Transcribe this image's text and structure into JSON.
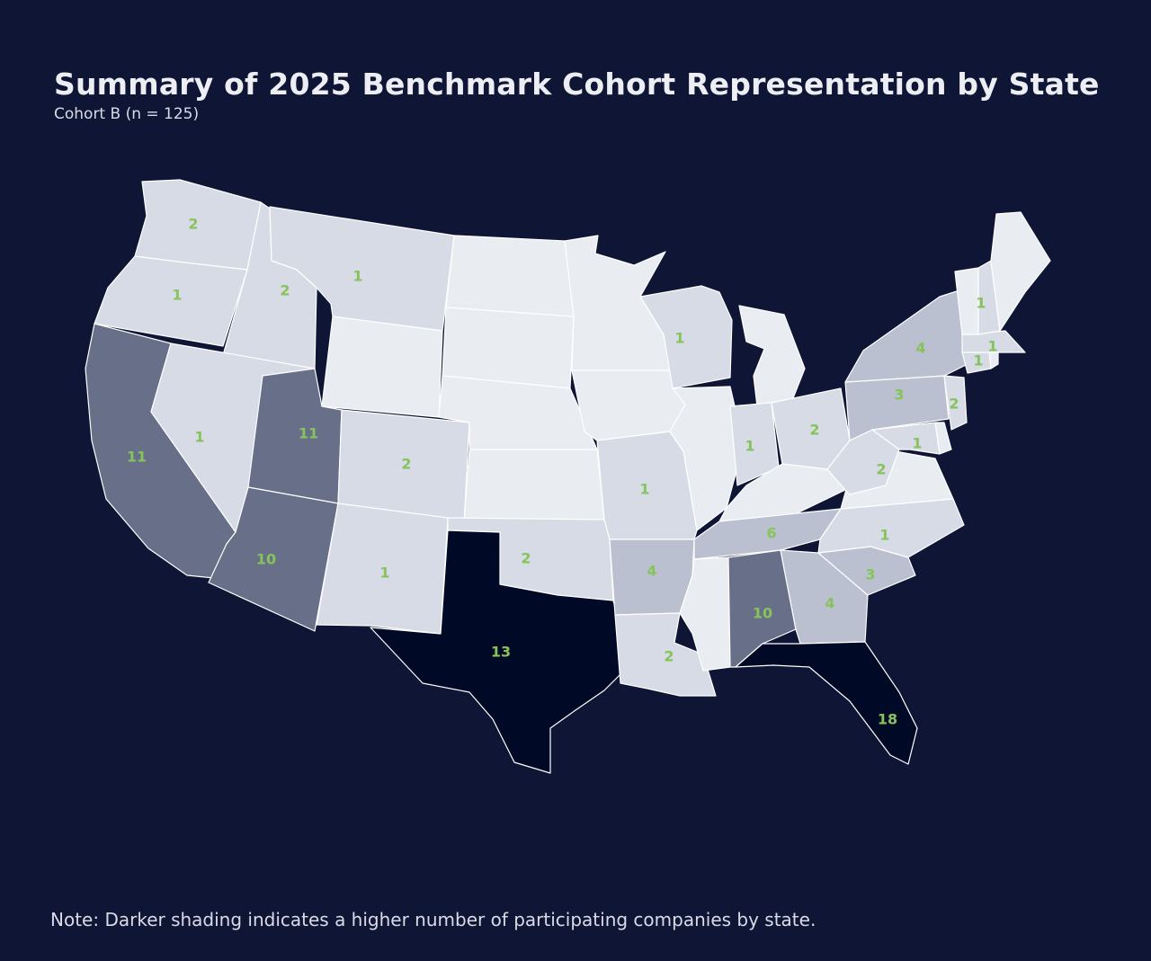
{
  "title": "Summary of 2025 Benchmark Cohort Representation by State",
  "subtitle": "Cohort B (n = 125)",
  "note": "Note: Darker shading indicates a higher number of participating companies by state.",
  "colors": {
    "background": "#0f1535",
    "shade_0": "#e9ecf1",
    "shade_1_2": "#d7dbe5",
    "shade_3_6": "#bac0cf",
    "shade_10_11": "#676f89",
    "shade_13_plus": "#000a26",
    "label": "#86c35a"
  },
  "states": [
    {
      "id": "WA",
      "value": 2
    },
    {
      "id": "OR",
      "value": 1
    },
    {
      "id": "CA",
      "value": 11
    },
    {
      "id": "ID",
      "value": 2
    },
    {
      "id": "NV",
      "value": 1
    },
    {
      "id": "MT",
      "value": 1
    },
    {
      "id": "WY",
      "value": 0
    },
    {
      "id": "UT",
      "value": 11
    },
    {
      "id": "AZ",
      "value": 10
    },
    {
      "id": "CO",
      "value": 2
    },
    {
      "id": "NM",
      "value": 1
    },
    {
      "id": "ND",
      "value": 0
    },
    {
      "id": "SD",
      "value": 0
    },
    {
      "id": "NE",
      "value": 0
    },
    {
      "id": "KS",
      "value": 0
    },
    {
      "id": "OK",
      "value": 2
    },
    {
      "id": "TX",
      "value": 13
    },
    {
      "id": "MN",
      "value": 0
    },
    {
      "id": "IA",
      "value": 0
    },
    {
      "id": "MO",
      "value": 1
    },
    {
      "id": "AR",
      "value": 4
    },
    {
      "id": "LA",
      "value": 2
    },
    {
      "id": "WI",
      "value": 1
    },
    {
      "id": "IL",
      "value": 0
    },
    {
      "id": "MI",
      "value": 0
    },
    {
      "id": "IN",
      "value": 1
    },
    {
      "id": "OH",
      "value": 2
    },
    {
      "id": "KY",
      "value": 0
    },
    {
      "id": "TN",
      "value": 6
    },
    {
      "id": "MS",
      "value": 0
    },
    {
      "id": "AL",
      "value": 10
    },
    {
      "id": "GA",
      "value": 4
    },
    {
      "id": "FL",
      "value": 18
    },
    {
      "id": "SC",
      "value": 3
    },
    {
      "id": "NC",
      "value": 1
    },
    {
      "id": "VA",
      "value": 0
    },
    {
      "id": "WV",
      "value": 2
    },
    {
      "id": "MD",
      "value": 1
    },
    {
      "id": "DE",
      "value": 0
    },
    {
      "id": "PA",
      "value": 3
    },
    {
      "id": "NJ",
      "value": 2
    },
    {
      "id": "NY",
      "value": 4
    },
    {
      "id": "CT",
      "value": 1
    },
    {
      "id": "RI",
      "value": 0
    },
    {
      "id": "MA",
      "value": 1
    },
    {
      "id": "VT",
      "value": 0
    },
    {
      "id": "NH",
      "value": 1
    },
    {
      "id": "ME",
      "value": 0
    }
  ]
}
